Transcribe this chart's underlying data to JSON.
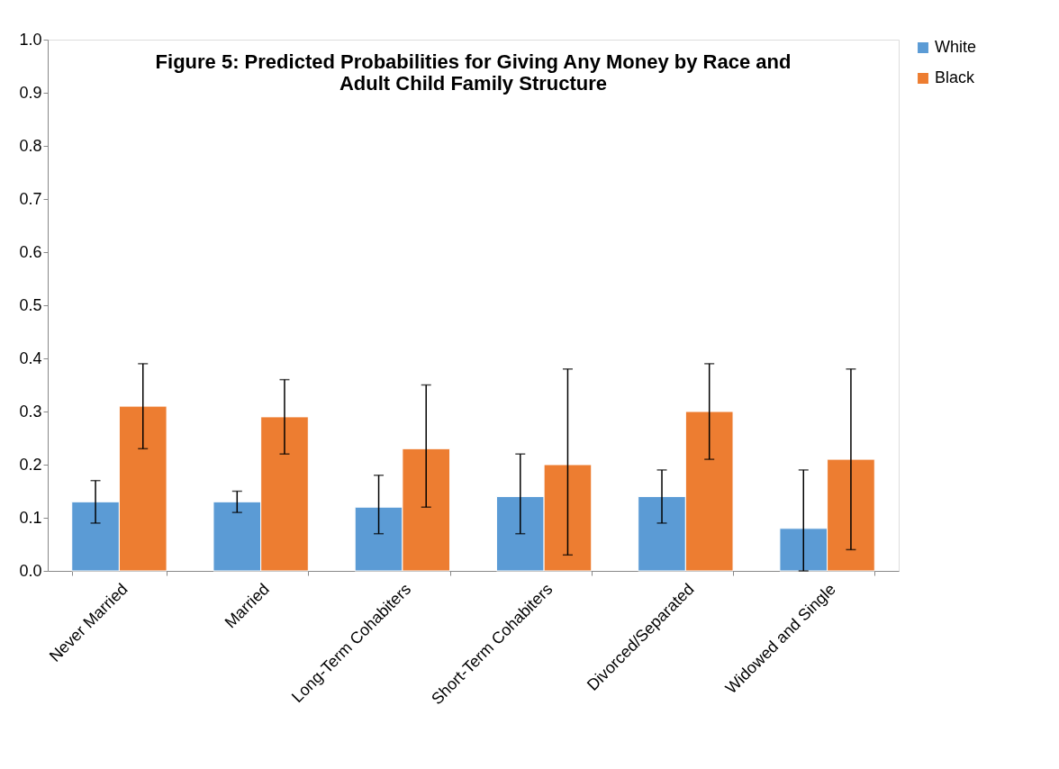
{
  "chart_data": {
    "type": "bar",
    "title": "Figure 5: Predicted Probabilities for Giving Any Money by Race and Adult Child Family Structure",
    "categories": [
      "Never Married",
      "Married",
      "Long-Term Cohabiters",
      "Short-Term Cohabiters",
      "Divorced/Separated",
      "Widowed and Single"
    ],
    "series": [
      {
        "name": "White",
        "color": "#5b9bd5",
        "values": [
          0.13,
          0.13,
          0.12,
          0.14,
          0.14,
          0.08
        ],
        "errors": [
          [
            0.09,
            0.17
          ],
          [
            0.11,
            0.15
          ],
          [
            0.07,
            0.18
          ],
          [
            0.07,
            0.22
          ],
          [
            0.09,
            0.19
          ],
          [
            0.0,
            0.19
          ]
        ]
      },
      {
        "name": "Black",
        "color": "#ed7d31",
        "values": [
          0.31,
          0.29,
          0.23,
          0.2,
          0.3,
          0.21
        ],
        "errors": [
          [
            0.23,
            0.39
          ],
          [
            0.22,
            0.36
          ],
          [
            0.12,
            0.35
          ],
          [
            0.03,
            0.38
          ],
          [
            0.21,
            0.39
          ],
          [
            0.04,
            0.38
          ]
        ]
      }
    ],
    "ylim": [
      0,
      1
    ],
    "yticks": [
      {
        "value": 0,
        "label": "0.0"
      },
      0.1,
      0.2,
      0.3,
      0.4,
      0.5,
      0.6,
      0.7,
      0.8,
      0.9,
      {
        "value": 1,
        "label": "1.0"
      }
    ],
    "grid": false,
    "legend": "right"
  }
}
